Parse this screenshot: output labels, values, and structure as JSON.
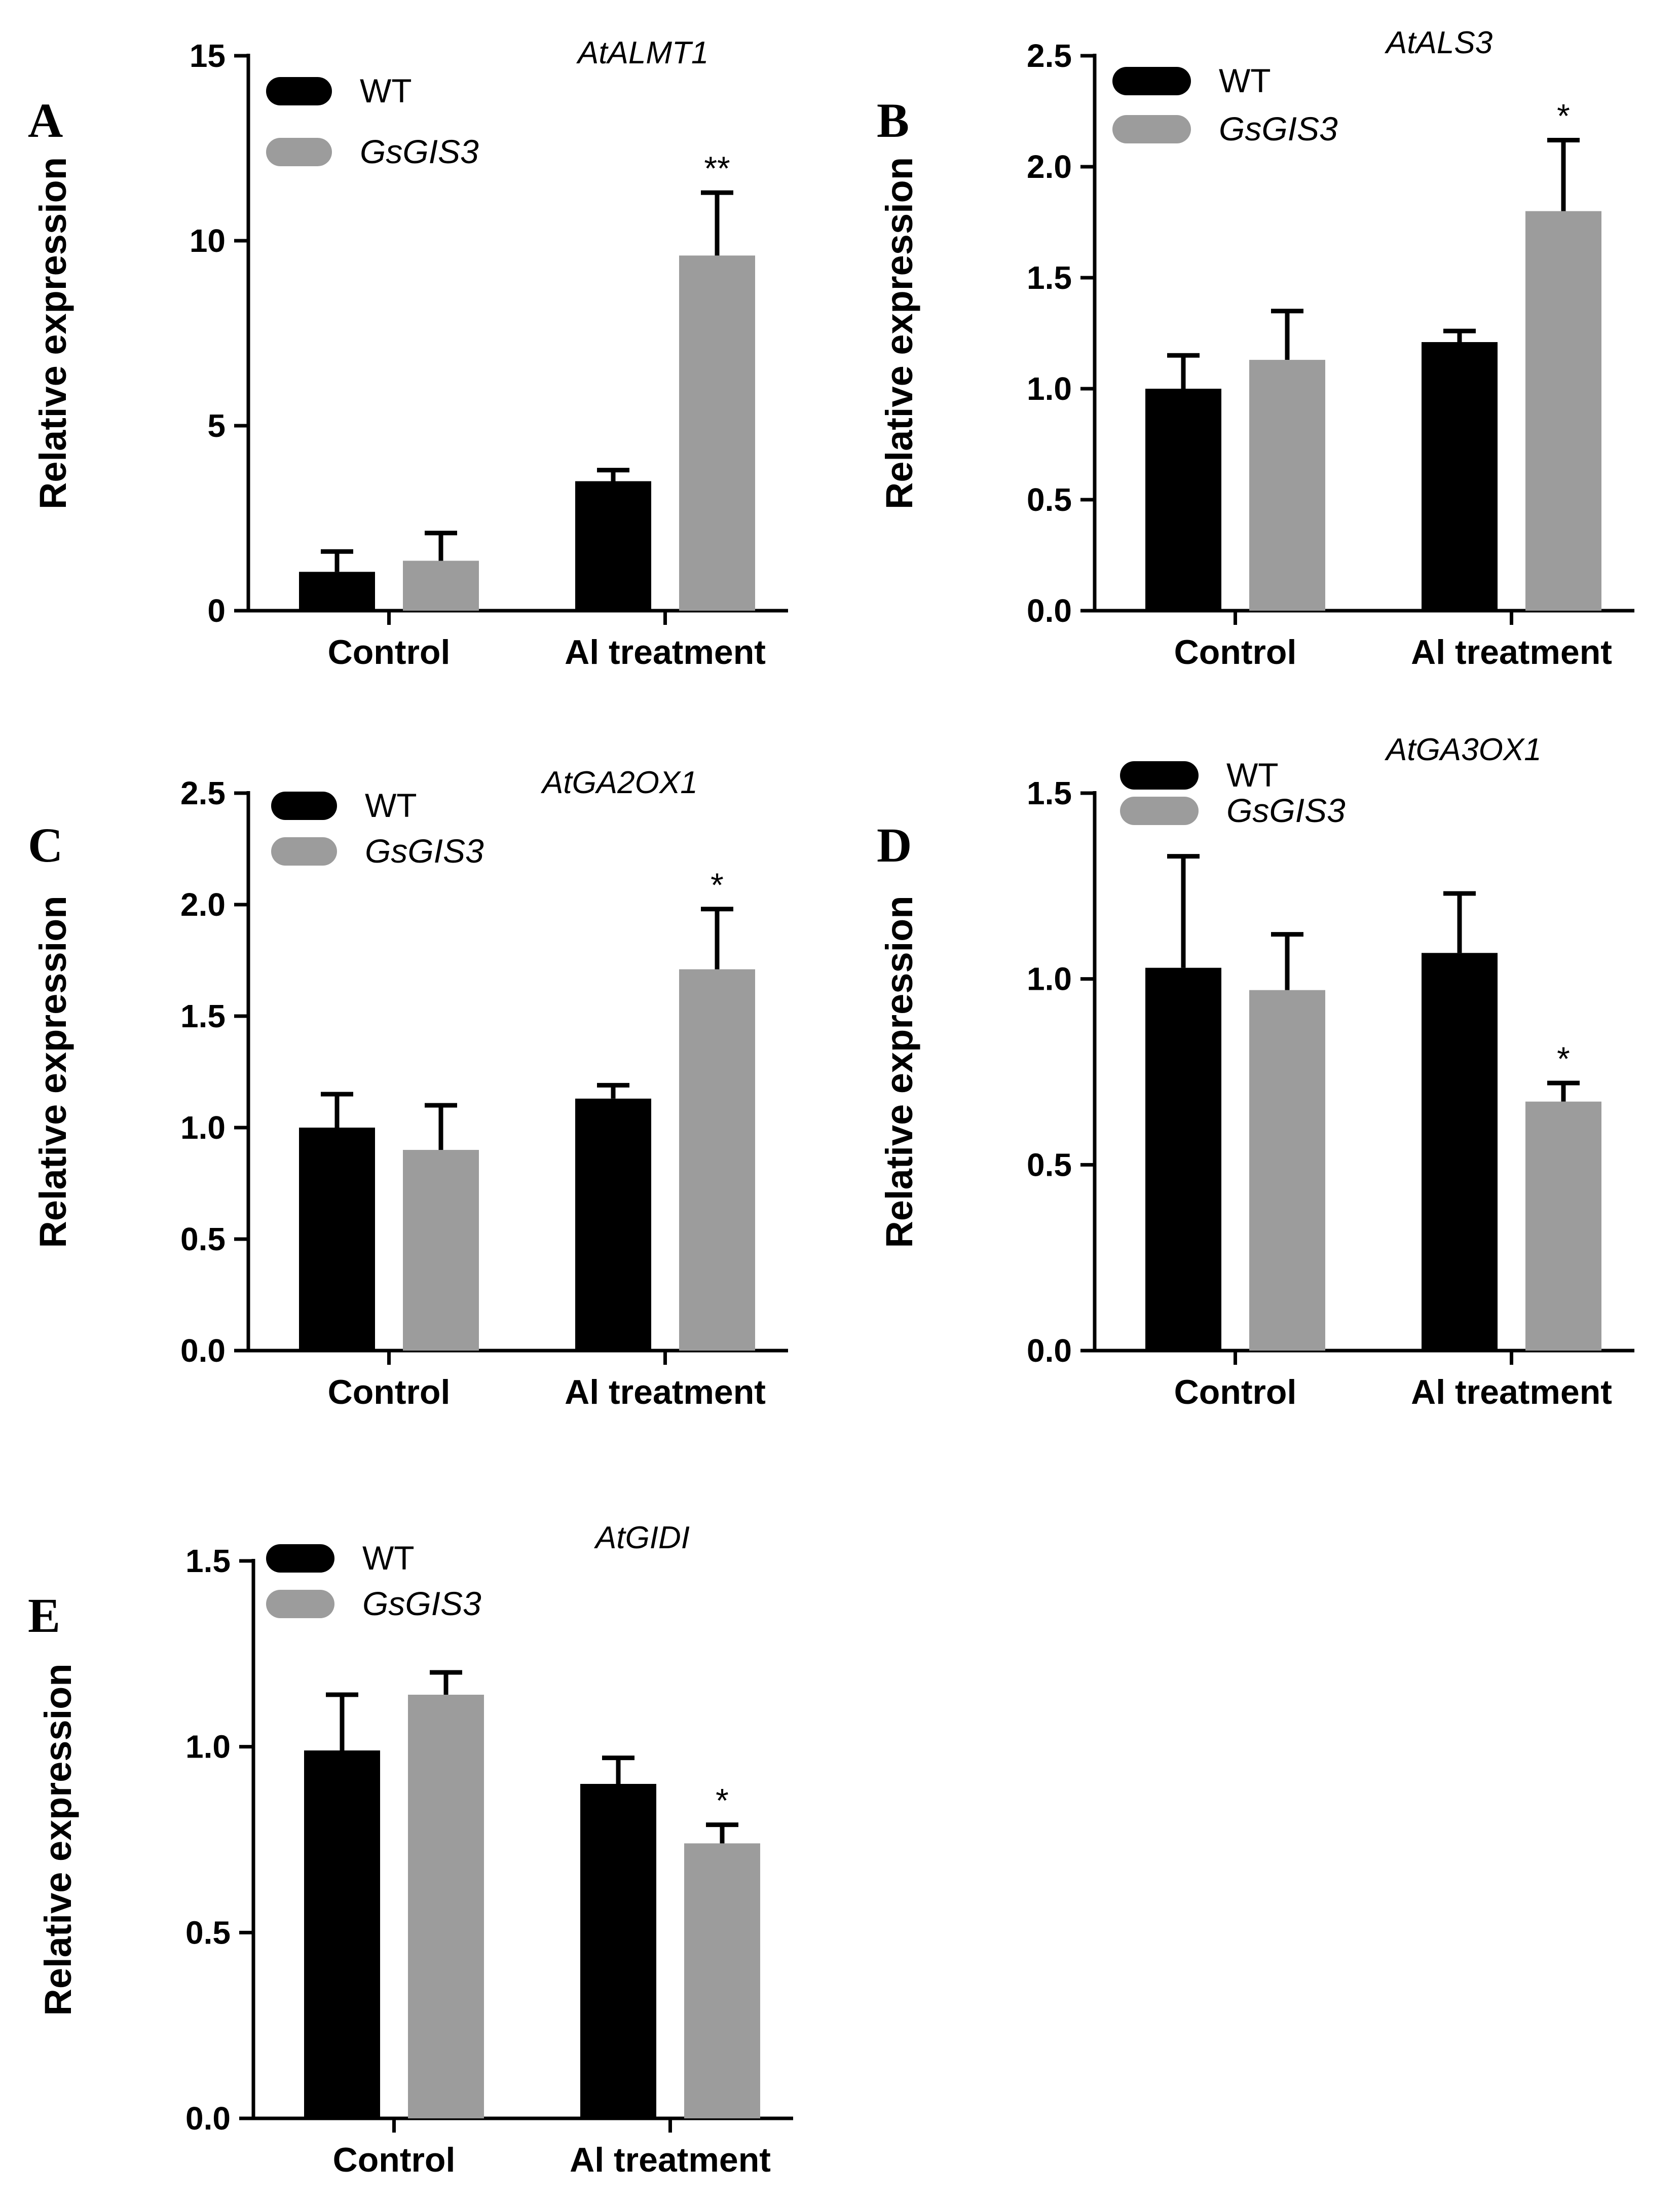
{
  "colors": {
    "wt": "#000000",
    "gsgis3": "#9c9c9c"
  },
  "chart_data": [
    {
      "type": "bar",
      "panel": "A",
      "title": "AtALMT1",
      "ylabel": "Relative expression",
      "categories": [
        "Control",
        "Al treatment"
      ],
      "ylim": [
        0,
        15
      ],
      "yticks": [
        0,
        5,
        10,
        15
      ],
      "ytick_labels": [
        "0",
        "5",
        "10",
        "15"
      ],
      "series": [
        {
          "name": "WT",
          "italic": false,
          "values": [
            1.05,
            3.5
          ],
          "errors": [
            0.55,
            0.3
          ],
          "sig": [
            "",
            ""
          ]
        },
        {
          "name": "GsGIS3",
          "italic": true,
          "values": [
            1.35,
            9.6
          ],
          "errors": [
            0.75,
            1.7
          ],
          "sig": [
            "",
            "**"
          ]
        }
      ]
    },
    {
      "type": "bar",
      "panel": "B",
      "title": "AtALS3",
      "ylabel": "Relative expression",
      "categories": [
        "Control",
        "Al treatment"
      ],
      "ylim": [
        0,
        2.5
      ],
      "yticks": [
        0,
        0.5,
        1.0,
        1.5,
        2.0,
        2.5
      ],
      "ytick_labels": [
        "0.0",
        "0.5",
        "1.0",
        "1.5",
        "2.0",
        "2.5"
      ],
      "series": [
        {
          "name": "WT",
          "italic": false,
          "values": [
            1.0,
            1.21
          ],
          "errors": [
            0.15,
            0.05
          ],
          "sig": [
            "",
            ""
          ]
        },
        {
          "name": "GsGIS3",
          "italic": true,
          "values": [
            1.13,
            1.8
          ],
          "errors": [
            0.22,
            0.32
          ],
          "sig": [
            "",
            "*"
          ]
        }
      ]
    },
    {
      "type": "bar",
      "panel": "C",
      "title": "AtGA2OX1",
      "ylabel": "Relative expression",
      "categories": [
        "Control",
        "Al treatment"
      ],
      "ylim": [
        0,
        2.5
      ],
      "yticks": [
        0,
        0.5,
        1.0,
        1.5,
        2.0,
        2.5
      ],
      "ytick_labels": [
        "0.0",
        "0.5",
        "1.0",
        "1.5",
        "2.0",
        "2.5"
      ],
      "series": [
        {
          "name": "WT",
          "italic": false,
          "values": [
            1.0,
            1.13
          ],
          "errors": [
            0.15,
            0.06
          ],
          "sig": [
            "",
            ""
          ]
        },
        {
          "name": "GsGIS3",
          "italic": true,
          "values": [
            0.9,
            1.71
          ],
          "errors": [
            0.2,
            0.27
          ],
          "sig": [
            "",
            "*"
          ]
        }
      ]
    },
    {
      "type": "bar",
      "panel": "D",
      "title": "AtGA3OX1",
      "ylabel": "Relative expression",
      "categories": [
        "Control",
        "Al treatment"
      ],
      "ylim": [
        0,
        1.5
      ],
      "yticks": [
        0,
        0.5,
        1.0,
        1.5
      ],
      "ytick_labels": [
        "0.0",
        "0.5",
        "1.0",
        "1.5"
      ],
      "series": [
        {
          "name": "WT",
          "italic": false,
          "values": [
            1.03,
            1.07
          ],
          "errors": [
            0.3,
            0.16
          ],
          "sig": [
            "",
            ""
          ]
        },
        {
          "name": "GsGIS3",
          "italic": true,
          "values": [
            0.97,
            0.67
          ],
          "errors": [
            0.15,
            0.05
          ],
          "sig": [
            "",
            "*"
          ]
        }
      ]
    },
    {
      "type": "bar",
      "panel": "E",
      "title": "AtGIDI",
      "ylabel": "Relative expression",
      "categories": [
        "Control",
        "Al treatment"
      ],
      "ylim": [
        0,
        1.5
      ],
      "yticks": [
        0,
        0.5,
        1.0,
        1.5
      ],
      "ytick_labels": [
        "0.0",
        "0.5",
        "1.0",
        "1.5"
      ],
      "series": [
        {
          "name": "WT",
          "italic": false,
          "values": [
            0.99,
            0.9
          ],
          "errors": [
            0.15,
            0.07
          ],
          "sig": [
            "",
            ""
          ]
        },
        {
          "name": "GsGIS3",
          "italic": true,
          "values": [
            1.14,
            0.74
          ],
          "errors": [
            0.06,
            0.05
          ],
          "sig": [
            "",
            "*"
          ]
        }
      ]
    }
  ]
}
